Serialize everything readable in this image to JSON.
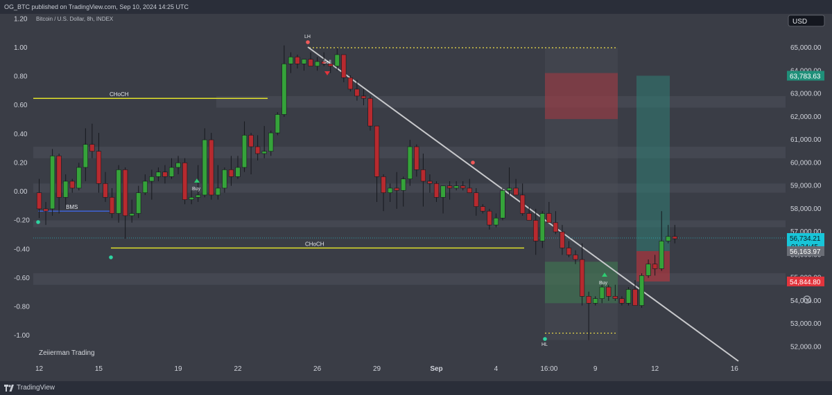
{
  "header": {
    "published_text": "OG_BTC published on TradingView.com, Sep 10, 2024 14:25 UTC"
  },
  "chart": {
    "symbol_text": "Bitcoin / U.S. Dollar, 8h, INDEX",
    "currency_label": "USD",
    "watermark": "Zeiierman Trading",
    "colors": {
      "background": "#3a3d46",
      "up": "#35a33a",
      "down": "#b72a2f",
      "choch_line": "#e2e22a",
      "bms_line": "#3f63d8",
      "trend_line": "#c8c9cc",
      "dotted_level": "#f2e24a",
      "zone": "#5a5d66",
      "red_box": "#c0353d",
      "green_box": "#3f8a52",
      "teal_box": "#2f7d74"
    }
  },
  "chart_data": {
    "type": "candlestick",
    "right_axis": {
      "ticks": [
        "65,000.00",
        "64,000.00",
        "63,000.00",
        "62,000.00",
        "61,000.00",
        "60,000.00",
        "59,000.00",
        "58,000.00",
        "57,000.00",
        "56,000.00",
        "55,000.00",
        "54,000.00",
        "53,000.00",
        "52,000.00"
      ],
      "range": [
        51500,
        66000
      ]
    },
    "left_axis": {
      "ticks": [
        "1.20",
        "1.00",
        "0.80",
        "0.60",
        "0.40",
        "0.20",
        "0.00",
        "-0.20",
        "-0.40",
        "-0.60",
        "-0.80",
        "-1.00"
      ]
    },
    "x_axis": {
      "ticks": [
        {
          "label": "12",
          "bar": 0
        },
        {
          "label": "15",
          "bar": 9
        },
        {
          "label": "19",
          "bar": 21
        },
        {
          "label": "22",
          "bar": 30
        },
        {
          "label": "26",
          "bar": 42
        },
        {
          "label": "29",
          "bar": 51
        },
        {
          "label": "Sep",
          "bar": 60
        },
        {
          "label": "4",
          "bar": 69
        },
        {
          "label": "16:00",
          "bar": 77
        },
        {
          "label": "9",
          "bar": 84
        },
        {
          "label": "12",
          "bar": 93
        },
        {
          "label": "16",
          "bar": 105
        }
      ]
    },
    "price_badges": [
      {
        "value": "63,783.63",
        "price": 63783.63,
        "color": "#1f8f79"
      },
      {
        "value": "56,734.21",
        "price": 56734.21,
        "color": "#18c5d8",
        "sub": "01:34:45"
      },
      {
        "value": "56,163.97",
        "price": 56163.97,
        "color": "#6a6d75"
      },
      {
        "value": "54,844.80",
        "price": 54844.8,
        "color": "#e3343c"
      }
    ],
    "candles": [
      [
        58700,
        59300,
        57600,
        58000
      ],
      [
        58000,
        58300,
        57300,
        57900
      ],
      [
        58000,
        60600,
        57700,
        60300
      ],
      [
        60300,
        60400,
        57800,
        58500
      ],
      [
        58500,
        59500,
        58000,
        59200
      ],
      [
        59200,
        59300,
        58700,
        58900
      ],
      [
        58900,
        60000,
        58800,
        59800
      ],
      [
        59800,
        61500,
        59200,
        60800
      ],
      [
        60800,
        61700,
        60200,
        60500
      ],
      [
        60500,
        61300,
        58700,
        59100
      ],
      [
        59100,
        59600,
        58300,
        58500
      ],
      [
        58500,
        58900,
        57600,
        57800
      ],
      [
        57800,
        59900,
        57400,
        59700
      ],
      [
        59700,
        59800,
        56700,
        57700
      ],
      [
        57700,
        58400,
        57400,
        57800
      ],
      [
        57800,
        59000,
        57600,
        58700
      ],
      [
        58700,
        59500,
        58600,
        59200
      ],
      [
        59200,
        59700,
        58400,
        59400
      ],
      [
        59400,
        59800,
        59200,
        59600
      ],
      [
        59600,
        59900,
        59100,
        59400
      ],
      [
        59400,
        60200,
        59300,
        59800
      ],
      [
        59800,
        60300,
        59500,
        60000
      ],
      [
        60000,
        60200,
        58200,
        58400
      ],
      [
        58400,
        58800,
        58200,
        58500
      ],
      [
        58500,
        59900,
        58300,
        58600
      ],
      [
        58600,
        61500,
        58500,
        61000
      ],
      [
        61000,
        61300,
        58400,
        58600
      ],
      [
        58600,
        59900,
        58400,
        58900
      ],
      [
        58900,
        59800,
        58700,
        59700
      ],
      [
        59700,
        60300,
        59000,
        59400
      ],
      [
        59400,
        60300,
        59300,
        59800
      ],
      [
        59800,
        61800,
        59600,
        61200
      ],
      [
        61200,
        61300,
        59500,
        60700
      ],
      [
        60700,
        61200,
        60100,
        60400
      ],
      [
        60400,
        61600,
        60200,
        60500
      ],
      [
        60500,
        61400,
        60300,
        61300
      ],
      [
        61300,
        62200,
        61200,
        62100
      ],
      [
        62100,
        65100,
        62000,
        64300
      ],
      [
        64300,
        64800,
        63900,
        64600
      ],
      [
        64600,
        64700,
        64100,
        64300
      ],
      [
        64300,
        64500,
        64000,
        64500
      ],
      [
        64500,
        64800,
        64200,
        64200
      ],
      [
        64200,
        64600,
        64000,
        64400
      ],
      [
        64400,
        64800,
        64200,
        64300
      ],
      [
        64300,
        64400,
        63900,
        64200
      ],
      [
        64200,
        65000,
        64000,
        64700
      ],
      [
        64700,
        64700,
        63500,
        63700
      ],
      [
        63700,
        63800,
        63100,
        63200
      ],
      [
        63200,
        63600,
        62700,
        62900
      ],
      [
        62900,
        63200,
        62500,
        62800
      ],
      [
        62800,
        62900,
        61400,
        61600
      ],
      [
        61600,
        61600,
        58300,
        59400
      ],
      [
        59400,
        59500,
        57900,
        58700
      ],
      [
        58700,
        59100,
        58300,
        58900
      ],
      [
        58900,
        59600,
        58000,
        58800
      ],
      [
        58800,
        59400,
        58100,
        59300
      ],
      [
        59300,
        61000,
        59000,
        60700
      ],
      [
        60700,
        60800,
        59400,
        59700
      ],
      [
        59700,
        60400,
        58100,
        59200
      ],
      [
        59200,
        59500,
        58700,
        59100
      ],
      [
        59100,
        59200,
        58300,
        58500
      ],
      [
        58500,
        59000,
        57800,
        59000
      ],
      [
        59000,
        59200,
        58400,
        58900
      ],
      [
        58900,
        59200,
        58800,
        59000
      ],
      [
        59000,
        59200,
        58800,
        58900
      ],
      [
        58900,
        59300,
        58700,
        58700
      ],
      [
        58700,
        58900,
        57700,
        58100
      ],
      [
        58100,
        58200,
        57800,
        57900
      ],
      [
        57900,
        58000,
        57100,
        57300
      ],
      [
        57300,
        57800,
        57200,
        57600
      ],
      [
        57600,
        58900,
        57500,
        58800
      ],
      [
        58800,
        59800,
        58600,
        58900
      ],
      [
        58900,
        59300,
        58600,
        58600
      ],
      [
        58600,
        59100,
        57700,
        57800
      ],
      [
        57800,
        58100,
        57500,
        57500
      ],
      [
        57500,
        58000,
        56000,
        56600
      ],
      [
        56600,
        57900,
        56300,
        57800
      ],
      [
        57800,
        58300,
        57400,
        57400
      ],
      [
        57400,
        57900,
        56900,
        57000
      ],
      [
        57000,
        57300,
        56000,
        56300
      ],
      [
        56300,
        56600,
        55900,
        56000
      ],
      [
        56000,
        56200,
        55600,
        55800
      ],
      [
        55800,
        56500,
        53800,
        54200
      ],
      [
        54200,
        54400,
        52300,
        53900
      ],
      [
        53900,
        54200,
        53800,
        54100
      ],
      [
        54100,
        54700,
        53900,
        54600
      ],
      [
        54600,
        54700,
        54000,
        54200
      ],
      [
        54200,
        54700,
        54000,
        54100
      ],
      [
        54100,
        54200,
        53800,
        53900
      ],
      [
        53900,
        54600,
        53800,
        54500
      ],
      [
        54500,
        54900,
        53800,
        53800
      ],
      [
        53800,
        55200,
        53700,
        55100
      ],
      [
        55100,
        55800,
        55000,
        55600
      ],
      [
        55600,
        56000,
        55100,
        55400
      ],
      [
        55400,
        57900,
        55300,
        56600
      ],
      [
        56600,
        57300,
        56500,
        56800
      ],
      [
        56800,
        57300,
        56500,
        56700
      ]
    ],
    "annotations": [
      {
        "text": "CHoCH"
      },
      {
        "text": "BMS"
      },
      {
        "text": "CHoCH"
      },
      {
        "text": "LH"
      },
      {
        "text": "Sell"
      },
      {
        "text": "Buy"
      },
      {
        "text": "Buy"
      },
      {
        "text": "HL"
      }
    ]
  },
  "footer": {
    "brand": "TradingView"
  }
}
